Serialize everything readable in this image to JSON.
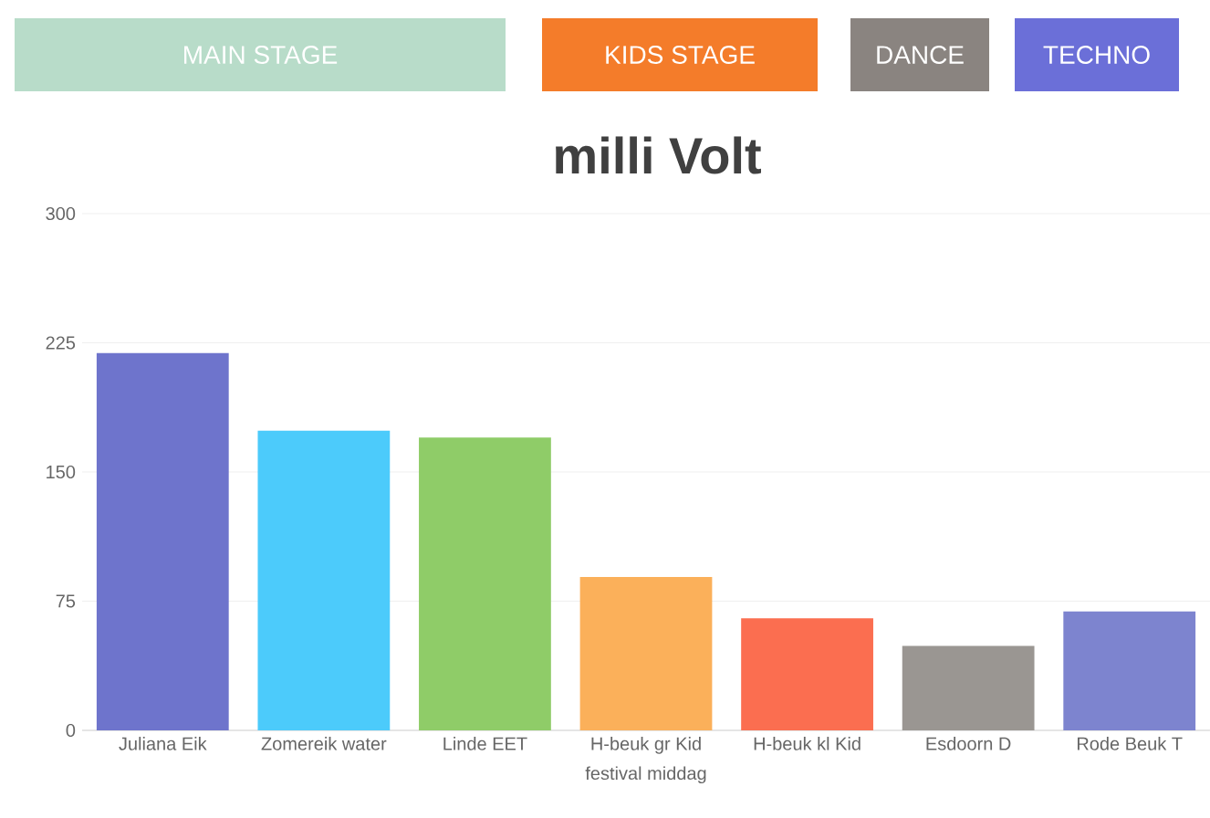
{
  "chart_data": {
    "type": "bar",
    "title": "milli Volt",
    "xlabel": "festival middag",
    "categories": [
      "Juliana Eik",
      "Zomereik water",
      "Linde EET",
      "H-beuk gr Kid",
      "H-beuk kl Kid",
      "Esdoorn D",
      "Rode Beuk T"
    ],
    "values": [
      219,
      174,
      170,
      89,
      65,
      49,
      69
    ],
    "colors": [
      "#6e74cc",
      "#4ccbfb",
      "#8fcc68",
      "#fbb05a",
      "#fb6e50",
      "#9a9692",
      "#7d84cf"
    ],
    "ylim": [
      0,
      300
    ],
    "yticks": [
      0,
      75,
      150,
      225,
      300
    ],
    "grid": "y",
    "annotations": [
      "MAIN STAGE",
      "KIDS STAGE",
      "DANCE",
      "TECHNO"
    ]
  }
}
